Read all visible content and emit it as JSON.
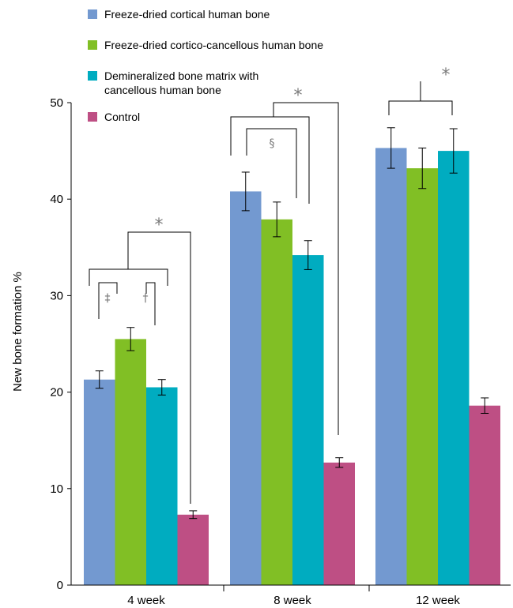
{
  "chart_data": {
    "type": "bar",
    "categories": [
      "4 week",
      "8 week",
      "12 week"
    ],
    "series": [
      {
        "name": "Freeze-dried cortical human bone",
        "color": "#7399d0",
        "values": [
          21.3,
          40.8,
          45.3
        ],
        "errors": [
          0.9,
          2.0,
          2.1
        ]
      },
      {
        "name": "Freeze-dried cortico-cancellous human bone",
        "color": "#81bf25",
        "values": [
          25.5,
          37.9,
          43.2
        ],
        "errors": [
          1.2,
          1.8,
          2.1
        ]
      },
      {
        "name": "Demineralized bone matrix with cancellous human bone",
        "legend_lines": [
          "Demineralized bone matrix with",
          "cancellous human bone"
        ],
        "color": "#00acc0",
        "values": [
          20.5,
          34.2,
          45.0
        ],
        "errors": [
          0.8,
          1.5,
          2.3
        ]
      },
      {
        "name": "Control",
        "color": "#be4f84",
        "values": [
          7.3,
          12.7,
          18.6
        ],
        "errors": [
          0.4,
          0.5,
          0.8
        ]
      }
    ],
    "ylabel": "New bone formation %",
    "xlabel": "",
    "ylim": [
      0,
      50
    ],
    "yticks": [
      "0",
      "10",
      "20",
      "30",
      "40",
      "50"
    ],
    "grid": false,
    "legend_position": "top-left",
    "annotations": [
      {
        "group": 0,
        "symbol": "‡",
        "kind": "pair",
        "series": [
          0,
          1
        ]
      },
      {
        "group": 0,
        "symbol": "†",
        "kind": "pair",
        "series": [
          1,
          2
        ]
      },
      {
        "group": 0,
        "symbol": "*",
        "kind": "group-vs-control"
      },
      {
        "group": 1,
        "symbol": "§",
        "kind": "pair",
        "series": [
          0,
          2
        ]
      },
      {
        "group": 1,
        "symbol": "*",
        "kind": "group-vs-control"
      },
      {
        "group": 2,
        "symbol": "*",
        "kind": "pair",
        "series": [
          0,
          2
        ]
      }
    ]
  }
}
